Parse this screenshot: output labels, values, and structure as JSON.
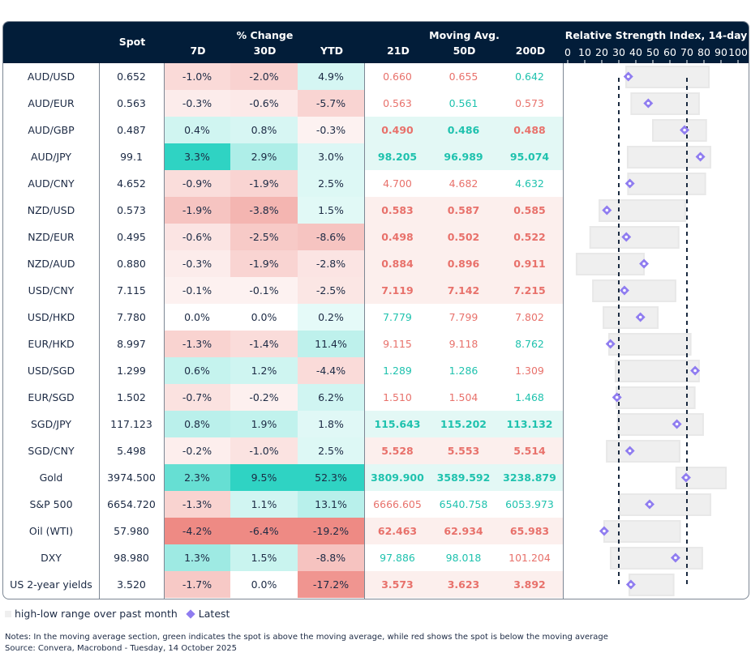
{
  "chart_data": {
    "type": "table",
    "header": {
      "spot": "Spot",
      "pct_group": "% Change",
      "pct_cols": [
        "7D",
        "30D",
        "YTD"
      ],
      "ma_group": "Moving Avg.",
      "ma_cols": [
        "21D",
        "50D",
        "200D"
      ],
      "rsi_title": "Relative Strength Index, 14-day",
      "rsi_ticks": [
        "0",
        "10",
        "20",
        "30",
        "40",
        "50",
        "60",
        "70",
        "80",
        "90",
        "100"
      ]
    },
    "rsi_axis": {
      "range": [
        0,
        100
      ],
      "reference_lines": [
        30,
        70
      ]
    },
    "colors": {
      "header_bg": "#021d39",
      "positive": "#2fd3c3",
      "negative": "#ee8a84",
      "ma_above_text": "#1fc2ae",
      "ma_below_text": "#e8716b",
      "range_bar": "#efefef",
      "latest_marker": "#8f7cf0"
    },
    "rows": [
      {
        "name": "AUD/USD",
        "spot": "0.652",
        "pct": [
          "-1.0%",
          "-2.0%",
          "4.9%"
        ],
        "ma": [
          "0.660",
          "0.655",
          "0.642"
        ],
        "rsi_low": 34.3,
        "rsi_high": 82.9,
        "rsi": 35.6
      },
      {
        "name": "AUD/EUR",
        "spot": "0.563",
        "pct": [
          "-0.3%",
          "-0.6%",
          "-5.7%"
        ],
        "ma": [
          "0.563",
          "0.561",
          "0.573"
        ],
        "rsi_low": 37.3,
        "rsi_high": 77.1,
        "rsi": 47.3
      },
      {
        "name": "AUD/GBP",
        "spot": "0.487",
        "pct": [
          "0.4%",
          "0.8%",
          "-0.3%"
        ],
        "ma": [
          "0.490",
          "0.486",
          "0.488"
        ],
        "rsi_low": 50.0,
        "rsi_high": 81.3,
        "rsi": 68.6,
        "ma_bold": "above"
      },
      {
        "name": "AUD/JPY",
        "spot": "99.1",
        "pct": [
          "3.3%",
          "2.9%",
          "3.0%"
        ],
        "ma": [
          "98.205",
          "96.989",
          "95.074"
        ],
        "rsi_low": 35.2,
        "rsi_high": 83.8,
        "rsi": 77.9,
        "ma_bold": "above"
      },
      {
        "name": "AUD/CNY",
        "spot": "4.652",
        "pct": [
          "-0.9%",
          "-1.9%",
          "2.5%"
        ],
        "ma": [
          "4.700",
          "4.682",
          "4.632"
        ],
        "rsi_low": 35.4,
        "rsi_high": 80.8,
        "rsi": 36.5
      },
      {
        "name": "NZD/USD",
        "spot": "0.573",
        "pct": [
          "-1.9%",
          "-3.8%",
          "1.5%"
        ],
        "ma": [
          "0.583",
          "0.587",
          "0.585"
        ],
        "rsi_low": 18.6,
        "rsi_high": 69.0,
        "rsi": 23.0,
        "ma_bold": "below"
      },
      {
        "name": "NZD/EUR",
        "spot": "0.495",
        "pct": [
          "-0.6%",
          "-2.5%",
          "-8.6%"
        ],
        "ma": [
          "0.498",
          "0.502",
          "0.522"
        ],
        "rsi_low": 13.2,
        "rsi_high": 65.1,
        "rsi": 34.4,
        "ma_bold": "below"
      },
      {
        "name": "NZD/AUD",
        "spot": "0.880",
        "pct": [
          "-0.3%",
          "-1.9%",
          "-2.8%"
        ],
        "ma": [
          "0.884",
          "0.896",
          "0.911"
        ],
        "rsi_low": 5.2,
        "rsi_high": 44.8,
        "rsi": 44.8,
        "ma_bold": "below"
      },
      {
        "name": "USD/CNY",
        "spot": "7.115",
        "pct": [
          "-0.1%",
          "-0.1%",
          "-2.5%"
        ],
        "ma": [
          "7.119",
          "7.142",
          "7.215"
        ],
        "rsi_low": 14.8,
        "rsi_high": 63.3,
        "rsi": 33.3,
        "ma_bold": "below"
      },
      {
        "name": "USD/HKD",
        "spot": "7.780",
        "pct": [
          "0.0%",
          "0.0%",
          "0.2%"
        ],
        "ma": [
          "7.779",
          "7.799",
          "7.802"
        ],
        "rsi_low": 21.0,
        "rsi_high": 52.9,
        "rsi": 42.7
      },
      {
        "name": "EUR/HKD",
        "spot": "8.997",
        "pct": [
          "-1.3%",
          "-1.4%",
          "11.4%"
        ],
        "ma": [
          "9.115",
          "9.118",
          "8.762"
        ],
        "rsi_low": 24.3,
        "rsi_high": 72.2,
        "rsi": 25.1
      },
      {
        "name": "USD/SGD",
        "spot": "1.299",
        "pct": [
          "0.6%",
          "1.2%",
          "-4.4%"
        ],
        "ma": [
          "1.289",
          "1.286",
          "1.309"
        ],
        "rsi_low": 28.1,
        "rsi_high": 77.1,
        "rsi": 74.8
      },
      {
        "name": "EUR/SGD",
        "spot": "1.502",
        "pct": [
          "-0.7%",
          "-0.2%",
          "6.2%"
        ],
        "ma": [
          "1.510",
          "1.504",
          "1.468"
        ],
        "rsi_low": 28.6,
        "rsi_high": 74.6,
        "rsi": 28.9
      },
      {
        "name": "SGD/JPY",
        "spot": "117.123",
        "pct": [
          "0.8%",
          "1.9%",
          "1.8%"
        ],
        "ma": [
          "115.643",
          "115.202",
          "113.132"
        ],
        "rsi_low": 29.4,
        "rsi_high": 79.5,
        "rsi": 64.1,
        "ma_bold": "above"
      },
      {
        "name": "SGD/CNY",
        "spot": "5.498",
        "pct": [
          "-0.2%",
          "-1.0%",
          "2.5%"
        ],
        "ma": [
          "5.528",
          "5.553",
          "5.514"
        ],
        "rsi_low": 22.9,
        "rsi_high": 65.7,
        "rsi": 36.5,
        "ma_bold": "below"
      },
      {
        "name": "Gold",
        "spot": "3974.500",
        "pct": [
          "2.3%",
          "9.5%",
          "52.3%"
        ],
        "ma": [
          "3809.900",
          "3589.592",
          "3238.879"
        ],
        "rsi_low": 63.7,
        "rsi_high": 92.9,
        "rsi": 69.5,
        "ma_bold": "above"
      },
      {
        "name": "S&P 500",
        "spot": "6654.720",
        "pct": [
          "-1.3%",
          "1.1%",
          "13.1%"
        ],
        "ma": [
          "6666.605",
          "6540.758",
          "6053.973"
        ],
        "rsi_low": 30.5,
        "rsi_high": 83.8,
        "rsi": 48.1
      },
      {
        "name": "Oil (WTI)",
        "spot": "57.980",
        "pct": [
          "-4.2%",
          "-6.4%",
          "-19.2%"
        ],
        "ma": [
          "62.463",
          "62.934",
          "65.983"
        ],
        "rsi_low": 21.4,
        "rsi_high": 66.0,
        "rsi": 21.4,
        "ma_bold": "below"
      },
      {
        "name": "DXY",
        "spot": "98.980",
        "pct": [
          "1.3%",
          "1.5%",
          "-8.8%"
        ],
        "ma": [
          "97.886",
          "98.018",
          "101.204"
        ],
        "rsi_low": 25.2,
        "rsi_high": 79.0,
        "rsi": 63.3
      },
      {
        "name": "US 2-year yields",
        "spot": "3.520",
        "pct": [
          "-1.7%",
          "0.0%",
          "-17.2%"
        ],
        "ma": [
          "3.573",
          "3.623",
          "3.892"
        ],
        "rsi_low": 36.2,
        "rsi_high": 62.2,
        "rsi": 37.1,
        "ma_bold": "below"
      }
    ]
  },
  "legend": {
    "range_label": "high-low range over past month",
    "latest_label": "Latest"
  },
  "notes": "Notes: In the moving average section, green indicates the spot is above the moving average, while red shows the spot is below the moving average",
  "source": "Source: Convera, Macrobond - Tuesday, 14 October 2025"
}
